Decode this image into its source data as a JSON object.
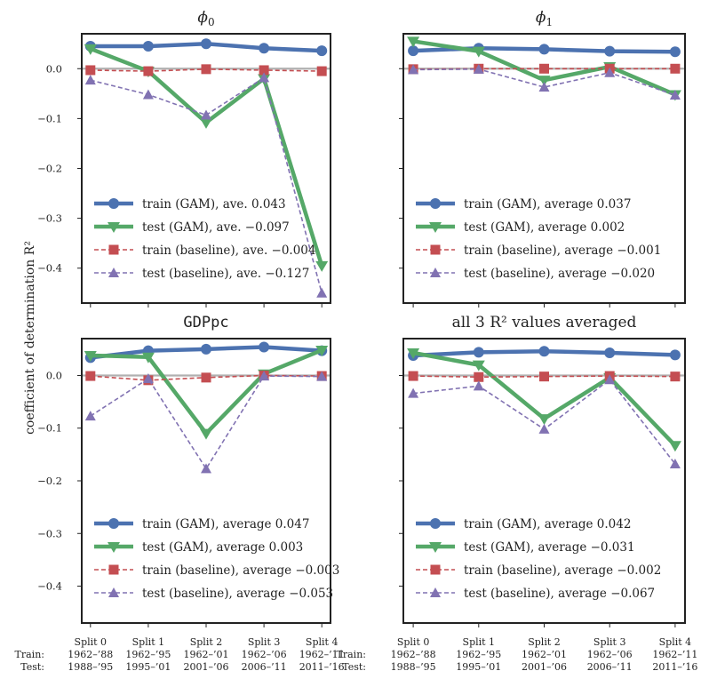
{
  "figure": {
    "ylabel": "coefficient of determination R²",
    "x_row_labels": [
      "Train:",
      "Test:"
    ]
  },
  "colors": {
    "train_gam": "#4c72b0",
    "test_gam": "#55a868",
    "train_base": "#c44e52",
    "test_base": "#8172b2",
    "zero_line": "#b0b0b0"
  },
  "chart_data": [
    {
      "type": "line",
      "title": "ϕ0",
      "title_main": "ϕ",
      "title_sub": "0",
      "categories": [
        "Split 0",
        "Split 1",
        "Split 2",
        "Split 3",
        "Split 4"
      ],
      "train_periods": [
        "1962–’88",
        "1962–’95",
        "1962–’01",
        "1962–’06",
        "1962–’11"
      ],
      "test_periods": [
        "1988–’95",
        "1995–’01",
        "2001–’06",
        "2006–’11",
        "2011–’16"
      ],
      "ylim": [
        -0.47,
        0.07
      ],
      "yticks": [
        0.0,
        -0.1,
        -0.2,
        -0.3,
        -0.4
      ],
      "ytick_labels": [
        "0.0",
        "−0.1",
        "−0.2",
        "−0.3",
        "−0.4"
      ],
      "series": [
        {
          "name": "train (GAM)",
          "values": [
            0.045,
            0.045,
            0.05,
            0.041,
            0.036
          ],
          "legend": "train (GAM), ave. 0.043"
        },
        {
          "name": "test (GAM)",
          "values": [
            0.04,
            -0.005,
            -0.108,
            -0.02,
            -0.395
          ],
          "legend": "test (GAM), ave. −0.097"
        },
        {
          "name": "train (baseline)",
          "values": [
            -0.003,
            -0.005,
            -0.001,
            -0.003,
            -0.005
          ],
          "legend": "train (baseline), ave. −0.004"
        },
        {
          "name": "test (baseline)",
          "values": [
            -0.023,
            -0.052,
            -0.093,
            -0.018,
            -0.45
          ],
          "legend": "test (baseline), ave. −0.127"
        }
      ]
    },
    {
      "type": "line",
      "title": "ϕ1",
      "title_main": "ϕ",
      "title_sub": "1",
      "categories": [
        "Split 0",
        "Split 1",
        "Split 2",
        "Split 3",
        "Split 4"
      ],
      "train_periods": [
        "1962–’88",
        "1962–’95",
        "1962–’01",
        "1962–’06",
        "1962–’11"
      ],
      "test_periods": [
        "1988–’95",
        "1995–’01",
        "2001–’06",
        "2006–’11",
        "2011–’16"
      ],
      "ylim": [
        -0.47,
        0.07
      ],
      "yticks": [
        0.0,
        -0.1,
        -0.2,
        -0.3,
        -0.4
      ],
      "ytick_labels": [
        "",
        "",
        "",
        "",
        ""
      ],
      "series": [
        {
          "name": "train (GAM)",
          "values": [
            0.036,
            0.041,
            0.039,
            0.035,
            0.034
          ],
          "legend": "train (GAM), average 0.037"
        },
        {
          "name": "test (GAM)",
          "values": [
            0.055,
            0.035,
            -0.023,
            0.004,
            -0.052
          ],
          "legend": "test (GAM), average 0.002"
        },
        {
          "name": "train (baseline)",
          "values": [
            -0.001,
            0.0,
            0.0,
            0.0,
            0.0
          ],
          "legend": "train (baseline), average −0.001"
        },
        {
          "name": "test (baseline)",
          "values": [
            -0.002,
            -0.001,
            -0.037,
            -0.008,
            -0.053
          ],
          "legend": "test (baseline), average −0.020"
        }
      ]
    },
    {
      "type": "line",
      "title": "GDPpc",
      "title_main": "GDPpc",
      "title_sub": "",
      "categories": [
        "Split 0",
        "Split 1",
        "Split 2",
        "Split 3",
        "Split 4"
      ],
      "train_periods": [
        "1962–’88",
        "1962–’95",
        "1962–’01",
        "1962–’06",
        "1962–’11"
      ],
      "test_periods": [
        "1988–’95",
        "1995–’01",
        "2001–’06",
        "2006–’11",
        "2011–’16"
      ],
      "ylim": [
        -0.47,
        0.07
      ],
      "yticks": [
        0.0,
        -0.1,
        -0.2,
        -0.3,
        -0.4
      ],
      "ytick_labels": [
        "0.0",
        "−0.1",
        "−0.2",
        "−0.3",
        "−0.4"
      ],
      "series": [
        {
          "name": "train (GAM)",
          "values": [
            0.034,
            0.047,
            0.05,
            0.054,
            0.047
          ],
          "legend": "train (GAM), average 0.047"
        },
        {
          "name": "test (GAM)",
          "values": [
            0.038,
            0.035,
            -0.11,
            0.003,
            0.048
          ],
          "legend": "test (GAM), average 0.003"
        },
        {
          "name": "train (baseline)",
          "values": [
            -0.001,
            -0.009,
            -0.004,
            0.0,
            -0.001
          ],
          "legend": "train (baseline), average −0.003"
        },
        {
          "name": "test (baseline)",
          "values": [
            -0.077,
            -0.006,
            -0.177,
            -0.001,
            -0.002
          ],
          "legend": "test (baseline), average −0.053"
        }
      ]
    },
    {
      "type": "line",
      "title": "all 3 R² values averaged",
      "title_main": "all 3 R² values averaged",
      "title_sub": "",
      "categories": [
        "Split 0",
        "Split 1",
        "Split 2",
        "Split 3",
        "Split 4"
      ],
      "train_periods": [
        "1962–’88",
        "1962–’95",
        "1962–’01",
        "1962–’06",
        "1962–’11"
      ],
      "test_periods": [
        "1988–’95",
        "1995–’01",
        "2001–’06",
        "2006–’11",
        "2011–’16"
      ],
      "ylim": [
        -0.47,
        0.07
      ],
      "yticks": [
        0.0,
        -0.1,
        -0.2,
        -0.3,
        -0.4
      ],
      "ytick_labels": [
        "",
        "",
        "",
        "",
        ""
      ],
      "series": [
        {
          "name": "train (GAM)",
          "values": [
            0.038,
            0.044,
            0.046,
            0.043,
            0.039
          ],
          "legend": "train (GAM), average 0.042"
        },
        {
          "name": "test (GAM)",
          "values": [
            0.043,
            0.02,
            -0.082,
            -0.004,
            -0.133
          ],
          "legend": "test (GAM), average −0.031"
        },
        {
          "name": "train (baseline)",
          "values": [
            -0.001,
            -0.003,
            -0.002,
            -0.001,
            -0.002
          ],
          "legend": "train (baseline), average −0.002"
        },
        {
          "name": "test (baseline)",
          "values": [
            -0.034,
            -0.02,
            -0.102,
            -0.008,
            -0.168
          ],
          "legend": "test (baseline), average −0.067"
        }
      ]
    }
  ]
}
